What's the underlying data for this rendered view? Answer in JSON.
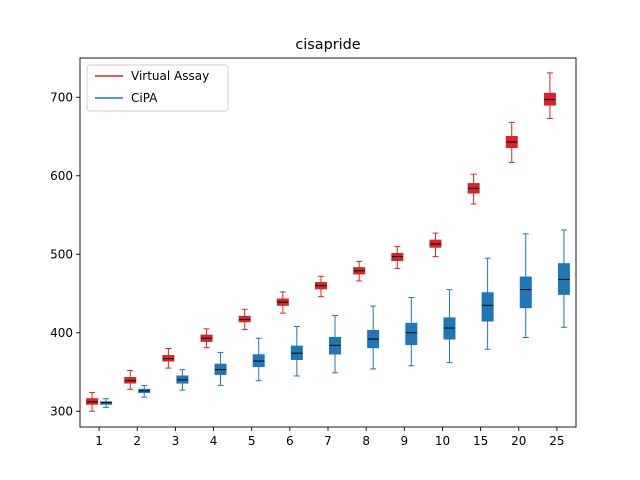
{
  "chart_data": {
    "type": "box",
    "title": "cisapride",
    "xlabel": "",
    "ylabel": "",
    "categories": [
      "1",
      "2",
      "3",
      "4",
      "5",
      "6",
      "7",
      "8",
      "9",
      "10",
      "15",
      "20",
      "25"
    ],
    "ylim": [
      280,
      750
    ],
    "yticks": [
      300,
      400,
      500,
      600,
      700
    ],
    "grid": false,
    "legend_position": "top-left",
    "series": [
      {
        "name": "Virtual Assay",
        "color": "#d62728",
        "boxes": [
          {
            "min": 300,
            "q1": 309,
            "median": 312,
            "q3": 316,
            "max": 324
          },
          {
            "min": 328,
            "q1": 336,
            "median": 339,
            "q3": 343,
            "max": 352
          },
          {
            "min": 355,
            "q1": 364,
            "median": 367,
            "q3": 371,
            "max": 380
          },
          {
            "min": 381,
            "q1": 389,
            "median": 393,
            "q3": 397,
            "max": 405
          },
          {
            "min": 404,
            "q1": 414,
            "median": 417,
            "q3": 421,
            "max": 430
          },
          {
            "min": 425,
            "q1": 435,
            "median": 439,
            "q3": 443,
            "max": 452
          },
          {
            "min": 446,
            "q1": 456,
            "median": 460,
            "q3": 464,
            "max": 472
          },
          {
            "min": 466,
            "q1": 475,
            "median": 479,
            "q3": 483,
            "max": 491
          },
          {
            "min": 482,
            "q1": 492,
            "median": 497,
            "q3": 501,
            "max": 510
          },
          {
            "min": 497,
            "q1": 509,
            "median": 513,
            "q3": 518,
            "max": 527
          },
          {
            "min": 564,
            "q1": 578,
            "median": 584,
            "q3": 590,
            "max": 602
          },
          {
            "min": 617,
            "q1": 636,
            "median": 643,
            "q3": 650,
            "max": 668
          },
          {
            "min": 673,
            "q1": 690,
            "median": 697,
            "q3": 705,
            "max": 731
          }
        ]
      },
      {
        "name": "CiPA",
        "color": "#1f77b4",
        "boxes": [
          {
            "min": 305,
            "q1": 309,
            "median": 311,
            "q3": 312,
            "max": 316
          },
          {
            "min": 318,
            "q1": 324,
            "median": 326,
            "q3": 328,
            "max": 333
          },
          {
            "min": 327,
            "q1": 336,
            "median": 340,
            "q3": 345,
            "max": 353
          },
          {
            "min": 333,
            "q1": 347,
            "median": 353,
            "q3": 360,
            "max": 375
          },
          {
            "min": 339,
            "q1": 357,
            "median": 364,
            "q3": 372,
            "max": 393
          },
          {
            "min": 345,
            "q1": 366,
            "median": 374,
            "q3": 383,
            "max": 408
          },
          {
            "min": 349,
            "q1": 373,
            "median": 384,
            "q3": 394,
            "max": 422
          },
          {
            "min": 354,
            "q1": 381,
            "median": 392,
            "q3": 403,
            "max": 434
          },
          {
            "min": 358,
            "q1": 385,
            "median": 400,
            "q3": 412,
            "max": 445
          },
          {
            "min": 362,
            "q1": 392,
            "median": 406,
            "q3": 419,
            "max": 455
          },
          {
            "min": 379,
            "q1": 415,
            "median": 435,
            "q3": 451,
            "max": 495
          },
          {
            "min": 394,
            "q1": 432,
            "median": 455,
            "q3": 471,
            "max": 526
          },
          {
            "min": 407,
            "q1": 449,
            "median": 468,
            "q3": 488,
            "max": 531
          }
        ]
      }
    ]
  }
}
